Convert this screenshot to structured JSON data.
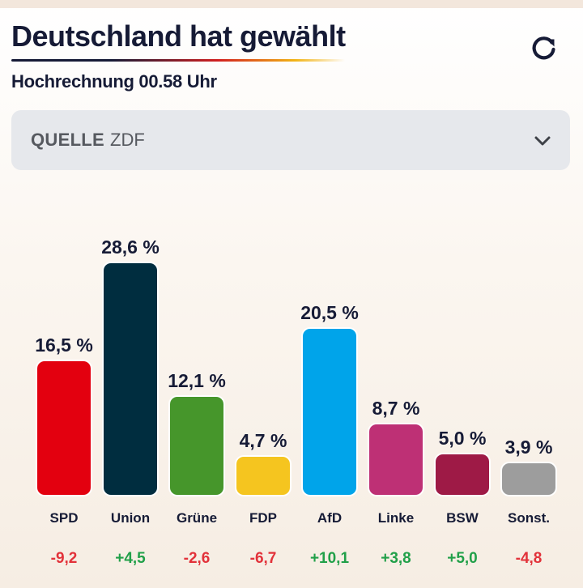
{
  "header": {
    "title": "Deutschland hat gewählt",
    "subtitle": "Hochrechnung 00.58 Uhr",
    "refresh_icon": "refresh-icon"
  },
  "source": {
    "label": "QUELLE",
    "value": "ZDF",
    "dropdown_icon": "chevron-down-icon"
  },
  "chart_data": {
    "type": "bar",
    "title": "Deutschland hat gewählt",
    "subtitle": "Hochrechnung 00.58 Uhr",
    "categories": [
      "SPD",
      "Union",
      "Grüne",
      "FDP",
      "AfD",
      "Linke",
      "BSW",
      "Sonst."
    ],
    "values": [
      16.5,
      28.6,
      12.1,
      4.7,
      20.5,
      8.7,
      5.0,
      3.9
    ],
    "value_labels": [
      "16,5 %",
      "28,6 %",
      "12,1 %",
      "4,7 %",
      "20,5 %",
      "8,7 %",
      "5,0 %",
      "3,9 %"
    ],
    "changes": [
      -9.2,
      4.5,
      -2.6,
      -6.7,
      10.1,
      3.8,
      5.0,
      -4.8
    ],
    "change_labels": [
      "-9,2",
      "+4,5",
      "-2,6",
      "-6,7",
      "+10,1",
      "+3,8",
      "+5,0",
      "-4,8"
    ],
    "colors": [
      "#e3000f",
      "#002d3f",
      "#46962b",
      "#f5c51f",
      "#00a4ea",
      "#be3075",
      "#9e1a46",
      "#9d9d9d"
    ],
    "positive_color": "#21a049",
    "negative_color": "#e2323a",
    "xlabel": "",
    "ylabel": "",
    "ylim": [
      0,
      30
    ],
    "grid": false,
    "legend": "none"
  }
}
